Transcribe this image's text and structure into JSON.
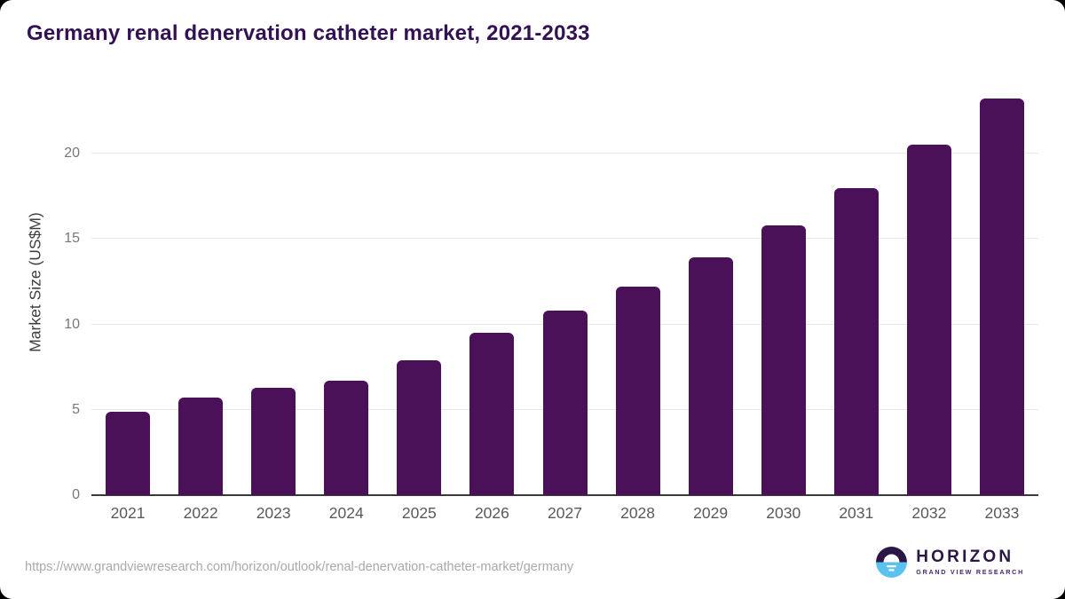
{
  "chart_data": {
    "type": "bar",
    "title": "Germany renal denervation catheter market, 2021-2033",
    "categories": [
      "2021",
      "2022",
      "2023",
      "2024",
      "2025",
      "2026",
      "2027",
      "2028",
      "2029",
      "2030",
      "2031",
      "2032",
      "2033"
    ],
    "values": [
      4.9,
      5.7,
      6.3,
      6.7,
      7.9,
      9.5,
      10.8,
      12.2,
      13.9,
      15.8,
      18.0,
      20.5,
      23.2
    ],
    "xlabel": "",
    "ylabel": "Market Size (US$M)",
    "ylim": [
      0,
      24
    ],
    "yticks": [
      0,
      5,
      10,
      15,
      20
    ],
    "grid": "horizontal",
    "legend": "none",
    "bar_color": "#4a1158"
  },
  "colors": {
    "title": "#331253",
    "bar": "#4a1158",
    "gridline": "#e8e8e8",
    "axis_line": "#3a3a3a",
    "tick_label": "#787878",
    "x_label": "#5a5a5a",
    "url_text": "#a9a9a9",
    "logo_purple": "#2b1745",
    "logo_blue": "#5bc2f0"
  },
  "footer": {
    "source_url": "https://www.grandviewresearch.com/horizon/outlook/renal-denervation-catheter-market/germany",
    "logo": {
      "name": "HORIZON",
      "subtitle": "GRAND VIEW RESEARCH"
    }
  }
}
